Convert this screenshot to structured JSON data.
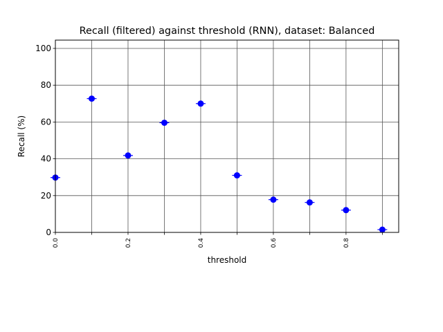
{
  "chart_data": {
    "type": "scatter",
    "title": "Recall (filtered) against threshold (RNN), dataset: Balanced",
    "xlabel": "threshold",
    "ylabel": "Recall (%)",
    "x": [
      0.0,
      0.1,
      0.2,
      0.3,
      0.4,
      0.5,
      0.6,
      0.7,
      0.8,
      0.9
    ],
    "y": [
      29.8,
      72.7,
      41.8,
      59.6,
      70.0,
      31.0,
      17.8,
      16.3,
      12.1,
      1.5
    ],
    "xticks": [
      "0.0",
      "0.2",
      "0.4",
      "0.6",
      "0.8"
    ],
    "xtick_values": [
      0.0,
      0.2,
      0.4,
      0.6,
      0.8
    ],
    "yticks": [
      "0",
      "20",
      "40",
      "60",
      "80",
      "100"
    ],
    "ytick_values": [
      0,
      20,
      40,
      60,
      80,
      100
    ],
    "xlim": [
      -0.0,
      0.945
    ],
    "ylim": [
      0,
      104.5
    ],
    "grid": true,
    "marker_color": "#0000ff",
    "grid_color": "#555555"
  }
}
